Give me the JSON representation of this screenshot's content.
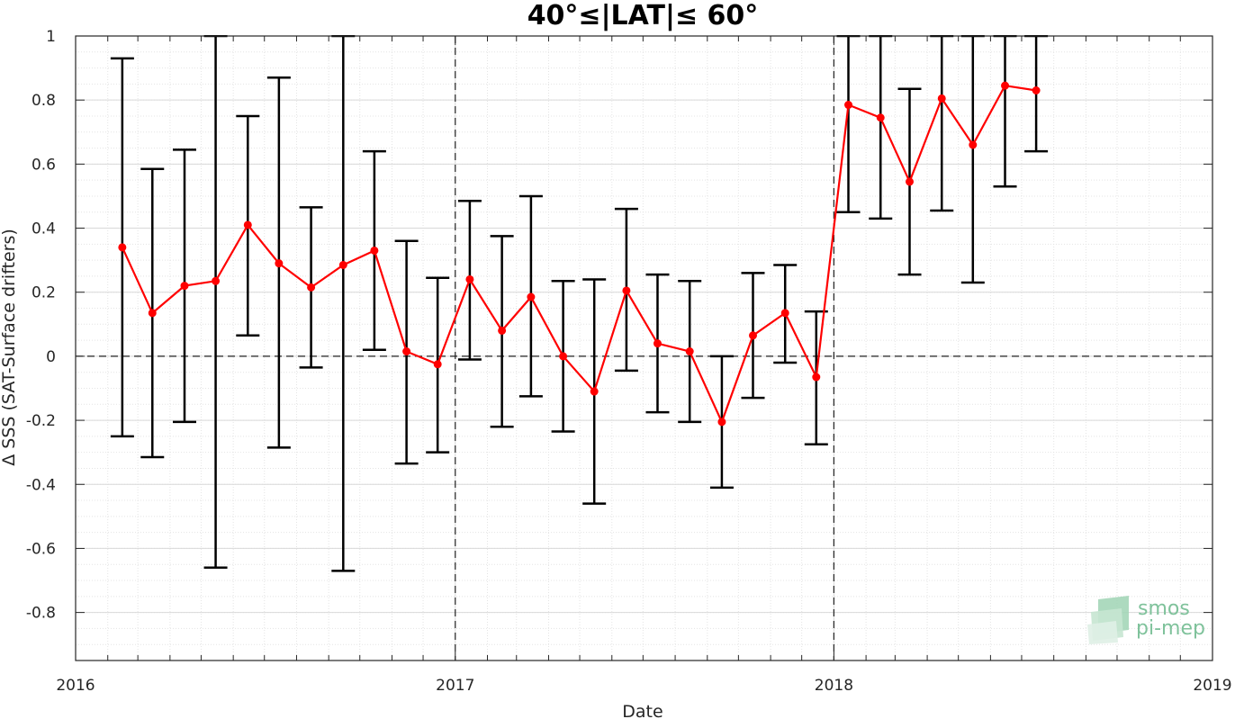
{
  "chart_data": {
    "type": "line",
    "title": "40°≤|LAT|≤ 60°",
    "xlabel": "Date",
    "ylabel": "Δ SSS (SAT-Surface drifters)",
    "x_range": [
      "2016-01-01",
      "2019-01-01"
    ],
    "ylim": [
      -0.95,
      1.0
    ],
    "x_tick_labels": [
      "2016",
      "2017",
      "2018",
      "2019"
    ],
    "y_tick_values": [
      -0.8,
      -0.6,
      -0.4,
      -0.2,
      0,
      0.2,
      0.4,
      0.6,
      0.8,
      1
    ],
    "y_tick_labels": [
      "-0.8",
      "-0.6",
      "-0.4",
      "-0.2",
      "0",
      "0.2",
      "0.4",
      "0.6",
      "0.8",
      "1"
    ],
    "grid": true,
    "reference_lines": {
      "y": [
        0
      ],
      "x": [
        "2017-01-01",
        "2018-01-01"
      ]
    },
    "series": [
      {
        "color": "#ff0000",
        "error_bar_color": "#000000",
        "x": [
          "2016-02-15",
          "2016-03-15",
          "2016-04-15",
          "2016-05-15",
          "2016-06-15",
          "2016-07-15",
          "2016-08-15",
          "2016-09-15",
          "2016-10-15",
          "2016-11-15",
          "2016-12-15",
          "2017-01-15",
          "2017-02-15",
          "2017-03-15",
          "2017-04-15",
          "2017-05-15",
          "2017-06-15",
          "2017-07-15",
          "2017-08-15",
          "2017-09-15",
          "2017-10-15",
          "2017-11-15",
          "2017-12-15",
          "2018-01-15",
          "2018-02-15",
          "2018-03-15",
          "2018-04-15",
          "2018-05-15",
          "2018-06-15",
          "2018-07-15"
        ],
        "y": [
          0.34,
          0.135,
          0.22,
          0.235,
          0.41,
          0.29,
          0.215,
          0.285,
          0.33,
          0.015,
          -0.025,
          0.24,
          0.08,
          0.185,
          0.0,
          -0.11,
          0.205,
          0.04,
          0.015,
          -0.205,
          0.065,
          0.135,
          -0.065,
          0.785,
          0.745,
          0.545,
          0.805,
          0.66,
          0.845,
          0.83
        ],
        "err_low": [
          -0.25,
          -0.315,
          -0.205,
          -0.66,
          0.065,
          -0.285,
          -0.035,
          -0.67,
          0.02,
          -0.335,
          -0.3,
          -0.01,
          -0.22,
          -0.125,
          -0.235,
          -0.46,
          -0.045,
          -0.175,
          -0.205,
          -0.41,
          -0.13,
          -0.02,
          -0.275,
          0.45,
          0.43,
          0.255,
          0.455,
          0.23,
          0.53,
          0.64
        ],
        "err_high": [
          0.93,
          0.585,
          0.645,
          1.0,
          0.75,
          0.87,
          0.465,
          1.0,
          0.64,
          0.36,
          0.245,
          0.485,
          0.375,
          0.5,
          0.235,
          0.24,
          0.46,
          0.255,
          0.235,
          0.0,
          0.26,
          0.285,
          0.14,
          1.0,
          1.0,
          0.835,
          1.0,
          1.0,
          1.0,
          1.0
        ]
      }
    ]
  },
  "watermark": {
    "line1": "smos",
    "line2": "pi-mep",
    "color": "#7fc29b"
  }
}
